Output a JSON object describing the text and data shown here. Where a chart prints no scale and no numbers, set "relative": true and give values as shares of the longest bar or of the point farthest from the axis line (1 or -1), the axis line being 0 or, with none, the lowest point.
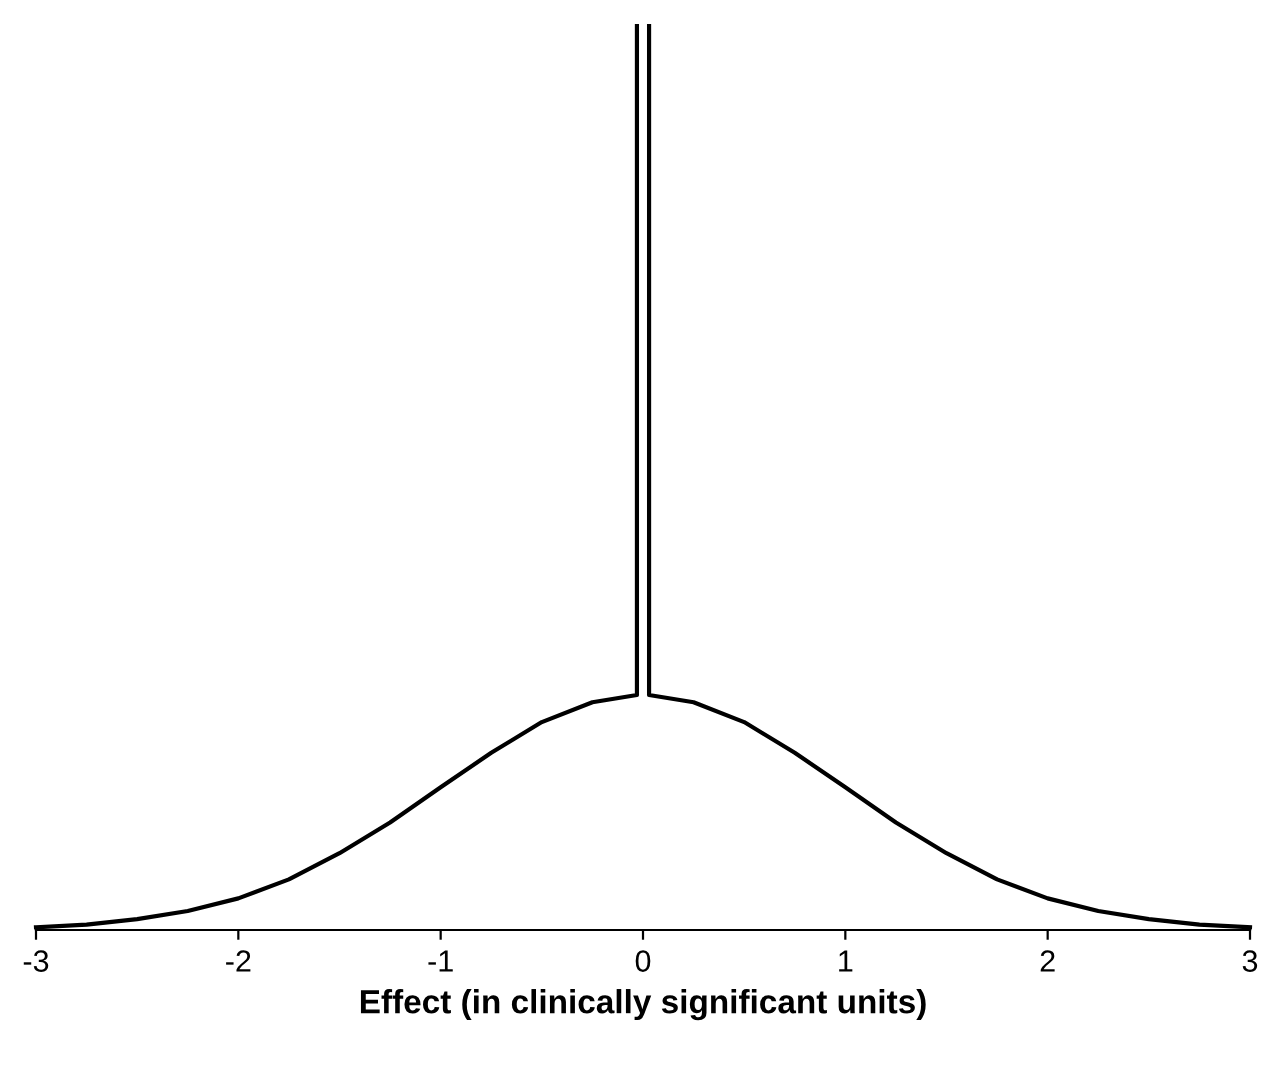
{
  "chart_data": {
    "type": "line",
    "relative": true,
    "xlabel": "Effect (in clinically significant units)",
    "xlim": [
      -3,
      3
    ],
    "xticks": [
      -3,
      -2,
      -1,
      0,
      1,
      2,
      3
    ],
    "grid": false,
    "marker": "none",
    "line_style": "solid",
    "series": [
      {
        "color": "#000000",
        "x": [
          -3,
          -2.75,
          -2.5,
          -2.25,
          -2,
          -1.75,
          -1.5,
          -1.25,
          -1,
          -0.75,
          -0.5,
          -0.25,
          -0.03,
          -0.03,
          0,
          0.03,
          0.03,
          0.25,
          0.5,
          0.75,
          1,
          1.25,
          1.5,
          1.75,
          2,
          2.25,
          2.5,
          2.75,
          3
        ],
        "values": [
          0.003,
          0.006,
          0.012,
          0.021,
          0.035,
          0.056,
          0.085,
          0.119,
          0.158,
          0.196,
          0.23,
          0.252,
          0.26,
          1,
          null,
          1,
          0.26,
          0.252,
          0.23,
          0.196,
          0.158,
          0.119,
          0.085,
          0.056,
          0.035,
          0.021,
          0.012,
          0.006,
          0.003
        ]
      }
    ]
  }
}
